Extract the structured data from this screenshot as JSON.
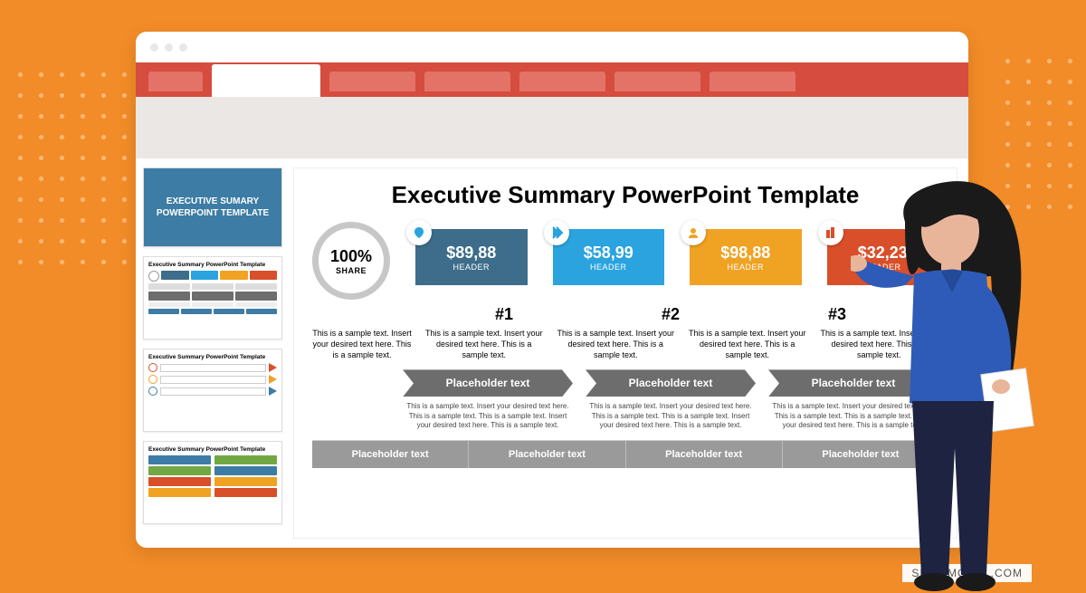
{
  "colors": {
    "page_bg": "#f28c28",
    "ribbon": "#d64c3e",
    "ribbon_tab_inactive": "#e37367",
    "subribbon": "#eae7e5",
    "thumb_title_bg": "#3d7ca5",
    "card1": "#3d6d8a",
    "card2": "#2aa3df",
    "card3": "#f0a223",
    "card4": "#d84f2a",
    "placeholder_bg": "#6d6d6d",
    "footer_bg": "#9a9a9a",
    "person_shirt": "#2e5bb8",
    "person_pants": "#1d2340",
    "person_skin": "#e9b59a",
    "person_hair": "#1a1a1a"
  },
  "thumbs": {
    "title": "EXECUTIVE SUMARY POWERPOINT TEMPLATE",
    "mini_title": "Executive Summary PowerPoint Template"
  },
  "slide": {
    "title": "Executive Summary PowerPoint Template",
    "share": {
      "percent": "100%",
      "label": "SHARE"
    },
    "cards": [
      {
        "price": "$89,88",
        "header": "HEADER",
        "color": "#3d6d8a",
        "icon_color": "#2aa3df"
      },
      {
        "price": "$58,99",
        "header": "HEADER",
        "color": "#2aa3df",
        "icon_color": "#2aa3df"
      },
      {
        "price": "$98,88",
        "header": "HEADER",
        "color": "#f0a223",
        "icon_color": "#f0a223"
      },
      {
        "price": "$32,23",
        "header": "HEADER",
        "color": "#d84f2a",
        "icon_color": "#d84f2a"
      }
    ],
    "nums": [
      "#1",
      "#2",
      "#3"
    ],
    "sample_text": "This is a sample text. Insert your desired text here. This is a sample text.",
    "placeholder_label": "Placeholder text",
    "small_sample": "This is a sample text. Insert your desired text here. This is a sample text. This is a sample text. Insert your desired text here. This is a sample text."
  },
  "brand": "SLIDEMODEL.COM"
}
